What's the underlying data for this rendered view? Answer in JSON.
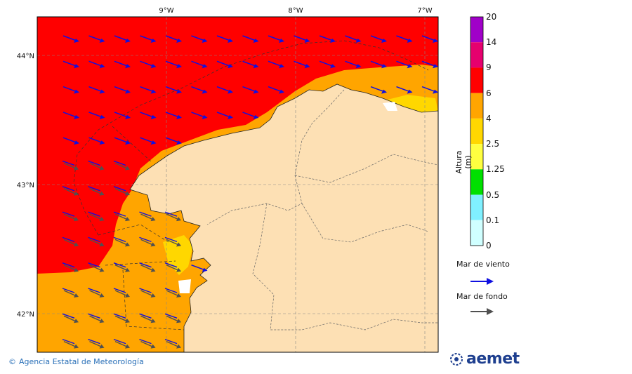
{
  "map": {
    "longitude_labels": [
      "9°W",
      "8°W",
      "7°W"
    ],
    "latitude_labels": [
      "44°N",
      "43°N",
      "42°N"
    ]
  },
  "colorbar": {
    "title": "Altura (m)",
    "levels": [
      "20",
      "14",
      "9",
      "6",
      "4",
      "2.5",
      "1.25",
      "0.5",
      "0.1",
      "0"
    ],
    "colors": [
      "#a000c8",
      "#e6006e",
      "#ff0000",
      "#ffa500",
      "#ffd700",
      "#ffff40",
      "#00e000",
      "#80f0ff",
      "#d0ffff"
    ]
  },
  "legend": {
    "wind_sea_label": "Mar de viento",
    "wind_sea_color": "#1010e0",
    "swell_label": "Mar de fondo",
    "swell_color": "#505050"
  },
  "footer": {
    "credit": "Agencia Estatal de Meteorología",
    "logo_text": "aemet"
  },
  "colors": {
    "land": "#fde0b4",
    "sea_high": "#ff0000",
    "sea_mid": "#ffa500",
    "sea_low": "#ffd700"
  }
}
